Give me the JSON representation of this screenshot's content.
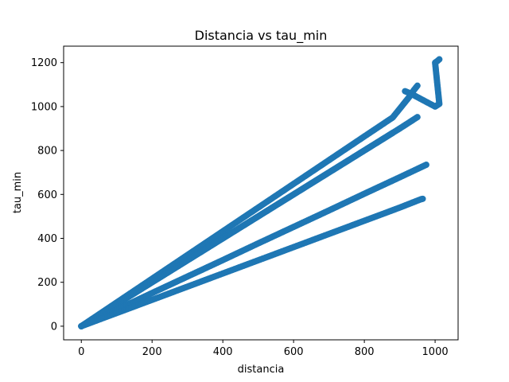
{
  "chart_data": {
    "type": "scatter",
    "title": "Distancia vs tau_min",
    "xlabel": "distancia",
    "ylabel": "tau_min",
    "xlim": [
      -50,
      1065
    ],
    "ylim": [
      -62,
      1275
    ],
    "xticks": [
      0,
      200,
      400,
      600,
      800,
      1000
    ],
    "yticks": [
      0,
      200,
      400,
      600,
      800,
      1000,
      1200
    ],
    "grid": false,
    "legend": "none",
    "marker_color": "#1f77b4",
    "series": [
      {
        "points": [
          [
            0,
            0
          ],
          [
            50,
            50
          ],
          [
            100,
            100
          ],
          [
            150,
            150
          ],
          [
            200,
            200
          ],
          [
            250,
            250
          ],
          [
            300,
            300
          ],
          [
            350,
            350
          ],
          [
            400,
            400
          ],
          [
            450,
            450
          ],
          [
            500,
            500
          ],
          [
            550,
            550
          ],
          [
            600,
            600
          ],
          [
            650,
            650
          ],
          [
            700,
            700
          ],
          [
            750,
            750
          ],
          [
            800,
            800
          ],
          [
            850,
            850
          ],
          [
            880,
            880
          ]
        ]
      },
      {
        "points": [
          [
            0,
            0
          ],
          [
            100,
            108
          ],
          [
            200,
            216
          ],
          [
            300,
            324
          ],
          [
            400,
            432
          ],
          [
            500,
            540
          ],
          [
            600,
            648
          ],
          [
            700,
            756
          ],
          [
            800,
            864
          ],
          [
            880,
            950
          ],
          [
            900,
            990
          ],
          [
            920,
            1030
          ],
          [
            930,
            1050
          ],
          [
            940,
            1075
          ],
          [
            950,
            1095
          ]
        ]
      },
      {
        "points": [
          [
            0,
            0
          ],
          [
            100,
            100
          ],
          [
            200,
            200
          ],
          [
            300,
            300
          ],
          [
            400,
            400
          ],
          [
            500,
            500
          ],
          [
            600,
            600
          ],
          [
            700,
            700
          ],
          [
            800,
            800
          ],
          [
            900,
            900
          ],
          [
            950,
            952
          ]
        ]
      },
      {
        "points": [
          [
            0,
            0
          ],
          [
            100,
            75
          ],
          [
            200,
            151
          ],
          [
            300,
            226
          ],
          [
            400,
            301
          ],
          [
            500,
            377
          ],
          [
            600,
            452
          ],
          [
            700,
            527
          ],
          [
            800,
            603
          ],
          [
            900,
            678
          ],
          [
            950,
            716
          ],
          [
            975,
            735
          ]
        ]
      },
      {
        "points": [
          [
            0,
            0
          ],
          [
            100,
            60
          ],
          [
            200,
            120
          ],
          [
            300,
            180
          ],
          [
            400,
            240
          ],
          [
            500,
            300
          ],
          [
            600,
            360
          ],
          [
            700,
            420
          ],
          [
            800,
            480
          ],
          [
            900,
            540
          ],
          [
            960,
            578
          ],
          [
            965,
            580
          ]
        ]
      },
      {
        "points": [
          [
            915,
            1070
          ],
          [
            930,
            1060
          ],
          [
            1000,
            1000
          ],
          [
            1005,
            1005
          ],
          [
            1012,
            1012
          ],
          [
            1000,
            1200
          ],
          [
            1006,
            1207
          ],
          [
            1012,
            1215
          ]
        ]
      }
    ]
  }
}
